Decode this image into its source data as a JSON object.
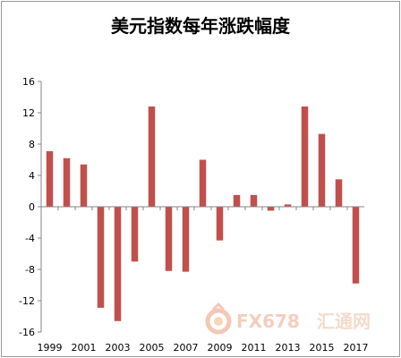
{
  "chart_data": {
    "type": "bar",
    "title": "美元指数每年涨跌幅度",
    "xlabel": "",
    "ylabel": "",
    "categories": [
      "1999",
      "2000",
      "2001",
      "2002",
      "2003",
      "2004",
      "2005",
      "2006",
      "2007",
      "2008",
      "2009",
      "2010",
      "2011",
      "2012",
      "2013",
      "2014",
      "2015",
      "2016",
      "2017"
    ],
    "x_tick_labels": [
      "1999",
      "2001",
      "2003",
      "2005",
      "2007",
      "2009",
      "2011",
      "2013",
      "2015",
      "2017"
    ],
    "series": [
      {
        "values": [
          7.1,
          6.2,
          5.4,
          -12.9,
          -14.6,
          -7.0,
          12.8,
          -8.2,
          -8.3,
          6.0,
          -4.3,
          1.5,
          1.5,
          -0.5,
          0.3,
          12.8,
          9.3,
          3.5,
          -9.8
        ]
      }
    ],
    "ylim": [
      -16,
      16
    ],
    "y_ticks": [
      -16,
      -12,
      -8,
      -4,
      0,
      4,
      8,
      12,
      16
    ],
    "grid": false,
    "legend": "none",
    "bar_color": "#c0504d"
  },
  "watermark": {
    "brand_text": "FX678",
    "cn_text": "汇通网",
    "icon": "fx678-logo-icon"
  }
}
